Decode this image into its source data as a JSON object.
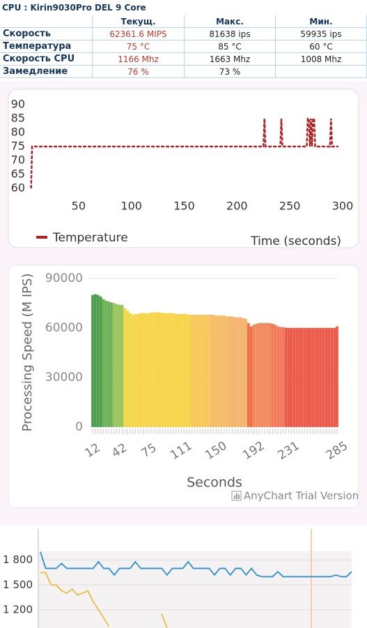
{
  "header": {
    "title": "CPU : Kirin9030Pro DEL 9 Core"
  },
  "table": {
    "header": [
      "Текущ.",
      "Макс.",
      "Мин."
    ],
    "rows": [
      [
        "Скорость",
        "62361.6 MIPS",
        "81638 ips",
        "59935 ips"
      ],
      [
        "Температура",
        "75 °C",
        "85 °C",
        "60 °C"
      ],
      [
        "Скорость CPU",
        "1166 Mhz",
        "1663 Mhz",
        "1008 Mhz"
      ],
      [
        "Замедление",
        "76 %",
        "73 %"
      ]
    ]
  },
  "chart_data": [
    {
      "type": "line",
      "x_label": "Time (seconds)",
      "line_style": "dashed",
      "series": [
        {
          "name": "Temperature",
          "color": "#b22222",
          "x": [
            5,
            6,
            225,
            226,
            227,
            241,
            242,
            243,
            266,
            267,
            268,
            269,
            270,
            271,
            272,
            273,
            274,
            288,
            289,
            290,
            296
          ],
          "values": [
            60,
            75,
            75,
            85,
            75,
            75,
            85,
            75,
            75,
            85,
            85,
            75,
            85,
            75,
            85,
            85,
            75,
            75,
            85,
            75,
            75
          ]
        }
      ],
      "xlim": [
        0,
        300
      ],
      "ylim": [
        57,
        92.5
      ],
      "xticks": [
        50,
        100,
        150,
        200,
        250,
        300
      ],
      "yticks": [
        60,
        65,
        70,
        75,
        80,
        85,
        90
      ]
    },
    {
      "type": "bar",
      "x_label": "Seconds",
      "y_label": "Processing Speed (M IPS)",
      "credit": "AnyChart Trial Version",
      "x": [
        12,
        15,
        18,
        21,
        24,
        27,
        30,
        33,
        36,
        39,
        42,
        45,
        48,
        51,
        54,
        57,
        60,
        63,
        66,
        69,
        72,
        75,
        78,
        81,
        84,
        87,
        90,
        93,
        96,
        99,
        102,
        105,
        108,
        111,
        114,
        117,
        120,
        123,
        126,
        129,
        132,
        135,
        138,
        141,
        144,
        147,
        150,
        153,
        156,
        159,
        162,
        165,
        168,
        171,
        174,
        177,
        180,
        183,
        186,
        189,
        192,
        195,
        198,
        201,
        204,
        207,
        210,
        213,
        216,
        219,
        222,
        225,
        228,
        231,
        234,
        237,
        240,
        243,
        246,
        249,
        252,
        255,
        258,
        261,
        264,
        267,
        270,
        273,
        276,
        279,
        282,
        285
      ],
      "values": [
        80000,
        80500,
        80000,
        79000,
        77500,
        76500,
        76000,
        75500,
        75000,
        74500,
        74000,
        74000,
        72000,
        70500,
        69000,
        68000,
        68500,
        68500,
        69000,
        69000,
        69000,
        69000,
        69500,
        69500,
        69500,
        69500,
        69000,
        69000,
        69000,
        69000,
        69000,
        68500,
        68500,
        68500,
        68500,
        68500,
        68000,
        68000,
        68000,
        68000,
        68000,
        68000,
        68000,
        68000,
        68000,
        68000,
        67500,
        67500,
        67500,
        67500,
        67000,
        67000,
        67000,
        66500,
        66500,
        66500,
        66000,
        65500,
        63000,
        61000,
        62000,
        62500,
        63000,
        63000,
        63000,
        63000,
        63000,
        62500,
        62000,
        61000,
        60500,
        60500,
        60000,
        60000,
        60000,
        60000,
        60000,
        60000,
        60000,
        60000,
        60000,
        60000,
        60000,
        60000,
        60000,
        60000,
        60000,
        60000,
        60000,
        60000,
        60000,
        61000
      ],
      "colors": [
        "#4e9f4e",
        "#4e9f4e",
        "#4e9f4e",
        "#4e9f4e",
        "#6db257",
        "#6db257",
        "#6db257",
        "#6db257",
        "#9cc45c",
        "#9cc45c",
        "#9cc45c",
        "#9cc45c",
        "#f2d64b",
        "#f2d64b",
        "#f2d64b",
        "#f2d64b",
        "#f7d54b",
        "#f7d54b",
        "#f7d54b",
        "#f7d54b",
        "#f7d54b",
        "#f7d54b",
        "#f7d54b",
        "#f7d54b",
        "#f7d54b",
        "#f7d54b",
        "#f7d54b",
        "#f7d54b",
        "#f7d54b",
        "#f7d54b",
        "#f7d54b",
        "#f7d54b",
        "#f7d54b",
        "#f7d54b",
        "#f7d54b",
        "#f7d54b",
        "#f7d54b",
        "#f8c95a",
        "#f8c95a",
        "#f8c95a",
        "#f8c95a",
        "#f8c95a",
        "#f8c95a",
        "#f8c95a",
        "#f6bd68",
        "#f6bd68",
        "#f6bd68",
        "#f6bd68",
        "#f6bd68",
        "#f6bd68",
        "#f6bd68",
        "#f4b56e",
        "#f4b56e",
        "#f4b56e",
        "#f4b56e",
        "#f4b56e",
        "#f4b56e",
        "#f4b56e",
        "#ee7149",
        "#ee7149",
        "#f38a5e",
        "#f38a5e",
        "#f38a5e",
        "#f38a5e",
        "#f38a5e",
        "#f38a5e",
        "#f38a5e",
        "#f27a5a",
        "#f27a5a",
        "#f27a5a",
        "#f27a5a",
        "#f27a5a",
        "#ec5c4d",
        "#ec5c4d",
        "#ec5c4d",
        "#ec5c4d",
        "#ec5c4d",
        "#ec5c4d",
        "#ec5c4d",
        "#ec5c4d",
        "#ec5c4d",
        "#ec5c4d",
        "#ec5c4d",
        "#ec5c4d",
        "#ec5c4d",
        "#ec5c4d",
        "#ec5c4d",
        "#ec5c4d",
        "#ec5c4d",
        "#ec5c4d",
        "#ec5c4d",
        "#ec5c4d"
      ],
      "xlim": [
        12,
        285
      ],
      "ylim": [
        0,
        90000
      ],
      "xticks": [
        12,
        42,
        75,
        111,
        150,
        192,
        231,
        285
      ],
      "yticks": [
        0,
        30000,
        60000,
        90000
      ],
      "grid": true
    },
    {
      "type": "line",
      "grid": true,
      "ylim": [
        980,
        2160
      ],
      "yticks": [
        {
          "value": 1200,
          "label": "1 200"
        },
        {
          "value": 1500,
          "label": "1 500"
        },
        {
          "value": 1800,
          "label": "1 800"
        }
      ],
      "series": [
        {
          "color": "#2f8fd0",
          "values": [
            1900,
            1700,
            1700,
            1700,
            1760,
            1700,
            1700,
            1700,
            1700,
            1700,
            1700,
            1780,
            1700,
            1700,
            1620,
            1700,
            1700,
            1700,
            1780,
            1700,
            1700,
            1700,
            1700,
            1700,
            1620,
            1700,
            1700,
            1700,
            1780,
            1700,
            1700,
            1700,
            1700,
            1620,
            1700,
            1700,
            1620,
            1700,
            1700,
            1620,
            1700,
            1620,
            1600,
            1600,
            1600,
            1660,
            1600,
            1600,
            1600,
            1600,
            1600,
            1600,
            1600,
            1600,
            1600,
            1600,
            1620,
            1600,
            1600,
            1660
          ]
        },
        {
          "color": "#e8c040",
          "values": [
            1650,
            1650,
            1500,
            1500,
            1430,
            1400,
            1450,
            1380,
            1400,
            1430,
            1300,
            1200,
            1100,
            1000,
            null,
            null,
            null,
            null,
            null,
            null,
            null,
            null,
            null,
            1150,
            980,
            null,
            null,
            null,
            null,
            null,
            null,
            null,
            null,
            null,
            null,
            null,
            null,
            null,
            null,
            null,
            null,
            null,
            null,
            null,
            null,
            null,
            null,
            null,
            null,
            null,
            null,
            null,
            null,
            null,
            null,
            null,
            null,
            null,
            null,
            null
          ]
        }
      ]
    }
  ]
}
